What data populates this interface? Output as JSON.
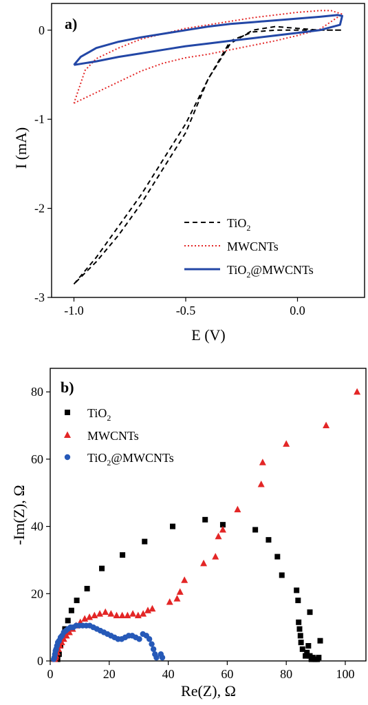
{
  "chart_data": [
    {
      "type": "line",
      "panel_label": "a)",
      "xlabel": "E (V)",
      "ylabel": "I (mA)",
      "xlim": [
        -1.1,
        0.3
      ],
      "ylim": [
        -3,
        0.3
      ],
      "xticks": [
        -1.0,
        -0.5,
        0.0
      ],
      "xtick_labels": [
        "-1.0",
        "-0.5",
        "0.0"
      ],
      "yticks": [
        -3,
        -2,
        -1,
        0
      ],
      "ytick_labels": [
        "-3",
        "-2",
        "-1",
        "0"
      ],
      "legend_position": "bottom-right",
      "series": [
        {
          "name": "TiO2",
          "label_main": "TiO",
          "label_sub": "2",
          "color": "#000000",
          "style": "dashed",
          "x": [
            -1.0,
            -0.9,
            -0.8,
            -0.7,
            -0.6,
            -0.5,
            -0.4,
            -0.3,
            -0.2,
            -0.1,
            0.0,
            0.1,
            0.2,
            0.1,
            0.0,
            -0.1,
            -0.2,
            -0.3,
            -0.4,
            -0.5,
            -0.6,
            -0.7,
            -0.8,
            -0.9,
            -1.0
          ],
          "y": [
            -2.85,
            -2.55,
            -2.2,
            -1.85,
            -1.45,
            -1.05,
            -0.55,
            -0.12,
            -0.02,
            0.0,
            0.0,
            0.0,
            0.0,
            0.0,
            0.02,
            0.04,
            0.0,
            -0.15,
            -0.55,
            -1.15,
            -1.55,
            -1.95,
            -2.3,
            -2.6,
            -2.85
          ]
        },
        {
          "name": "MWCNTs",
          "label_main": "MWCNTs",
          "label_sub": "",
          "color": "#e32626",
          "style": "dotted",
          "x": [
            -1.0,
            -0.9,
            -0.8,
            -0.7,
            -0.6,
            -0.5,
            -0.4,
            -0.3,
            -0.2,
            -0.1,
            0.0,
            0.1,
            0.2,
            0.15,
            0.1,
            0.0,
            -0.1,
            -0.2,
            -0.3,
            -0.4,
            -0.5,
            -0.6,
            -0.7,
            -0.8,
            -0.9,
            -0.95,
            -1.0
          ],
          "y": [
            -0.82,
            -0.7,
            -0.58,
            -0.46,
            -0.37,
            -0.31,
            -0.27,
            -0.22,
            -0.17,
            -0.12,
            -0.06,
            0.01,
            0.18,
            0.22,
            0.22,
            0.2,
            0.17,
            0.14,
            0.1,
            0.06,
            0.02,
            -0.04,
            -0.1,
            -0.2,
            -0.32,
            -0.45,
            -0.82
          ]
        },
        {
          "name": "TiO2@MWCNTs",
          "label_main": "TiO",
          "label_sub": "2",
          "label_rest": "@MWCNTs",
          "color": "#2347a6",
          "style": "solid",
          "x": [
            -1.0,
            -0.9,
            -0.8,
            -0.7,
            -0.6,
            -0.5,
            -0.4,
            -0.3,
            -0.2,
            -0.1,
            0.0,
            0.1,
            0.19,
            0.2,
            0.18,
            0.1,
            0.0,
            -0.1,
            -0.2,
            -0.3,
            -0.4,
            -0.5,
            -0.6,
            -0.7,
            -0.8,
            -0.9,
            -0.97,
            -1.0
          ],
          "y": [
            -0.39,
            -0.35,
            -0.3,
            -0.26,
            -0.22,
            -0.18,
            -0.15,
            -0.12,
            -0.09,
            -0.06,
            -0.03,
            0.0,
            0.06,
            0.16,
            0.17,
            0.15,
            0.13,
            0.11,
            0.09,
            0.07,
            0.04,
            0.0,
            -0.04,
            -0.08,
            -0.13,
            -0.2,
            -0.3,
            -0.39
          ]
        }
      ]
    },
    {
      "type": "scatter",
      "panel_label": "b)",
      "xlabel": "Re(Z), Ω",
      "ylabel": "-Im(Z), Ω",
      "xlim": [
        0,
        107
      ],
      "ylim": [
        0,
        87
      ],
      "xticks": [
        0,
        20,
        40,
        60,
        80,
        100
      ],
      "xtick_labels": [
        "0",
        "20",
        "40",
        "60",
        "80",
        "100"
      ],
      "yticks": [
        0,
        20,
        40,
        60,
        80
      ],
      "ytick_labels": [
        "0",
        "20",
        "40",
        "60",
        "80"
      ],
      "legend_position": "top-left",
      "series": [
        {
          "name": "TiO2",
          "label_main": "TiO",
          "label_sub": "2",
          "color": "#000000",
          "marker": "square",
          "x": [
            2.5,
            3.0,
            3.5,
            4.2,
            5.0,
            6.0,
            7.2,
            9.0,
            12.5,
            17.5,
            24.5,
            32.0,
            41.5,
            52.5,
            58.5,
            69.5,
            74.0,
            77.0,
            78.5,
            83.5,
            84.0,
            84.2,
            84.5,
            84.8,
            85.0,
            85.5,
            86.5,
            87.0,
            87.5,
            88.0,
            88.5,
            89.0,
            89.5,
            90.0,
            90.5,
            91.0,
            88.0,
            91.5
          ],
          "y": [
            0.5,
            2.0,
            4.5,
            7.0,
            9.5,
            12.0,
            15.0,
            18.0,
            21.5,
            27.5,
            31.5,
            35.5,
            40.0,
            42.0,
            40.5,
            39.0,
            36.0,
            31.0,
            25.5,
            21.0,
            18.0,
            11.5,
            9.5,
            7.5,
            5.5,
            3.5,
            1.5,
            2.5,
            4.5,
            1.5,
            0.5,
            1.0,
            0.5,
            0.5,
            0.5,
            1.0,
            14.5,
            6.0
          ]
        },
        {
          "name": "MWCNTs",
          "label_main": "MWCNTs",
          "label_sub": "",
          "color": "#e32626",
          "marker": "triangle",
          "x": [
            1.5,
            1.8,
            2.0,
            2.4,
            2.8,
            3.3,
            3.9,
            4.6,
            5.5,
            6.5,
            7.6,
            8.8,
            10.2,
            11.7,
            13.3,
            15.0,
            16.8,
            18.7,
            20.6,
            22.5,
            24.4,
            26.2,
            28.0,
            29.8,
            31.5,
            33.1,
            34.6,
            40.5,
            43.0,
            44.0,
            45.5,
            52.0,
            56.0,
            57.0,
            58.5,
            63.5,
            71.5,
            72.0,
            80.0,
            93.5,
            104.0
          ],
          "y": [
            0.5,
            1.0,
            1.5,
            2.5,
            3.5,
            4.5,
            5.5,
            6.5,
            7.5,
            8.5,
            9.5,
            10.5,
            11.5,
            12.5,
            13.0,
            13.5,
            14.0,
            14.5,
            14.0,
            13.5,
            13.5,
            13.5,
            14.0,
            13.5,
            14.0,
            15.0,
            15.5,
            17.5,
            18.5,
            20.5,
            24.0,
            29.0,
            31.0,
            37.0,
            39.0,
            45.0,
            52.5,
            59.0,
            64.5,
            70.0,
            80.0
          ]
        },
        {
          "name": "TiO2@MWCNTs",
          "label_main": "TiO",
          "label_sub": "2",
          "label_rest": "@MWCNTs",
          "color": "#2659b8",
          "marker": "circle",
          "x": [
            1.2,
            1.4,
            1.6,
            1.8,
            2.0,
            2.3,
            2.6,
            3.0,
            3.5,
            4.0,
            4.6,
            5.3,
            6.0,
            6.9,
            7.8,
            8.8,
            9.9,
            11.0,
            12.2,
            13.4,
            14.6,
            15.8,
            17.0,
            18.2,
            19.4,
            20.6,
            21.8,
            23.0,
            24.2,
            25.4,
            26.6,
            27.8,
            29.0,
            30.2,
            31.4,
            32.6,
            33.6,
            34.4,
            35.0,
            35.5,
            36.0,
            37.5,
            38.0
          ],
          "y": [
            0.5,
            1.0,
            2.0,
            3.0,
            3.5,
            4.5,
            5.5,
            6.0,
            7.0,
            7.5,
            8.5,
            9.0,
            9.5,
            10.0,
            10.0,
            10.5,
            10.5,
            10.5,
            10.5,
            10.5,
            10.0,
            9.5,
            9.0,
            8.5,
            8.0,
            7.5,
            7.0,
            6.5,
            6.5,
            7.0,
            7.5,
            7.5,
            7.0,
            6.5,
            8.0,
            7.5,
            6.5,
            5.0,
            3.5,
            2.0,
            1.0,
            2.0,
            1.0
          ]
        }
      ]
    }
  ]
}
